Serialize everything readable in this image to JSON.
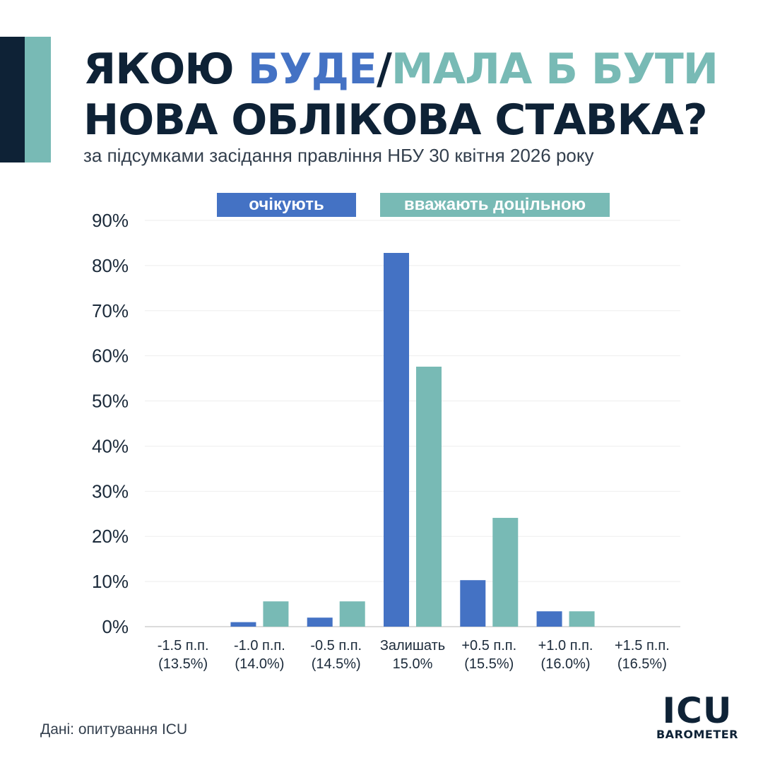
{
  "header": {
    "title_part1": "ЯКОЮ ",
    "title_part2": "БУДЕ",
    "title_part3": "/",
    "title_part4": "МАЛА Б БУТИ",
    "title_line2": "НОВА ОБЛІКОВА СТАВКА?",
    "subtitle": "за підсумками засідання правління НБУ 30 квітня 2026 року"
  },
  "colors": {
    "dark": "#0e2236",
    "expect": "#4472c4",
    "appropriate": "#78bab5"
  },
  "chart_data": {
    "type": "bar",
    "categories": [
      [
        "-1.5 п.п.",
        "(13.5%)"
      ],
      [
        "-1.0 п.п.",
        "(14.0%)"
      ],
      [
        "-0.5 п.п.",
        "(14.5%)"
      ],
      [
        "Залишать",
        "15.0%"
      ],
      [
        "+0.5 п.п.",
        "(15.5%)"
      ],
      [
        "+1.0 п.п.",
        "(16.0%)"
      ],
      [
        "+1.5 п.п.",
        "(16.5%)"
      ]
    ],
    "series": [
      {
        "name": "очікують",
        "color": "#4472c4",
        "values": [
          0,
          1,
          2,
          82.8,
          10.3,
          3.4,
          0
        ]
      },
      {
        "name": "вважають доцільною",
        "color": "#78bab5",
        "values": [
          0,
          5.6,
          5.6,
          57.6,
          24.1,
          3.4,
          0
        ]
      }
    ],
    "yticks": [
      "0%",
      "10%",
      "20%",
      "30%",
      "40%",
      "50%",
      "60%",
      "70%",
      "80%",
      "90%"
    ],
    "ylim": [
      0,
      90
    ],
    "grid": true,
    "legend": "top"
  },
  "footer": {
    "source": "Дані: опитування ICU",
    "logo_main": "ICU",
    "logo_sub": "BAROMETER"
  }
}
